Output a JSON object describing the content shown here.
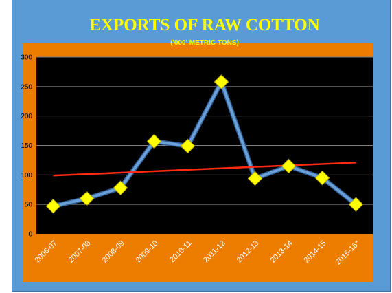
{
  "chart_data": {
    "type": "line",
    "title": "EXPORTS OF RAW COTTON",
    "subtitle": "('000' METRIC TONS)",
    "categories": [
      "2006-07",
      "2007-08",
      "2008-09",
      "2009-10",
      "2010-11",
      "2011-12",
      "2012-13",
      "2013-14",
      "2014-15",
      "2015-16*"
    ],
    "series": [
      {
        "values": [
          47,
          60,
          78,
          157,
          149,
          258,
          94,
          115,
          95,
          50
        ]
      }
    ],
    "trendline": {
      "start": 99,
      "end": 121
    },
    "ylim": [
      0,
      300
    ],
    "yticks": [
      0,
      50,
      100,
      150,
      200,
      250,
      300
    ],
    "grid": true,
    "legend": "none",
    "colors": {
      "frame_background": "#5b9bd5",
      "outer_plot_background": "#ed7d00",
      "plot_background": "#000000",
      "title": "#ffff00",
      "series_line": "#6a9fd8",
      "marker": "#ffff00",
      "trendline": "#ff2a10",
      "gridline": "#7f7f7f"
    }
  }
}
